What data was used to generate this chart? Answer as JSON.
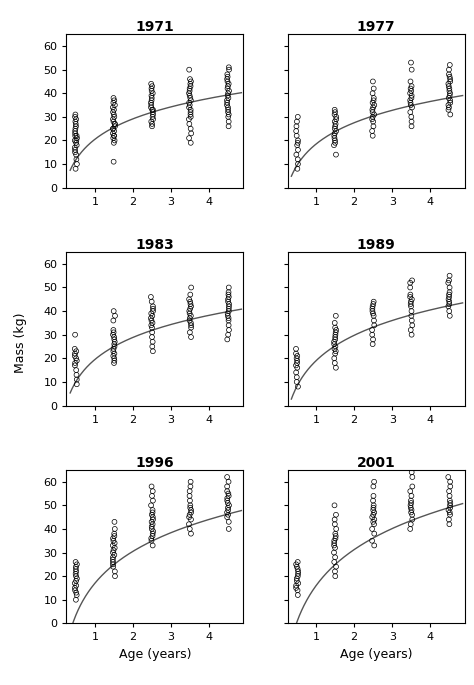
{
  "years": [
    "1971",
    "1977",
    "1983",
    "1989",
    "1996",
    "2001"
  ],
  "age_groups": [
    0.5,
    1.5,
    2.5,
    3.5,
    4.5
  ],
  "panels": {
    "1971": {
      "log_a": 20.5,
      "log_b": 12.5,
      "scatter": {
        "0.5": [
          8,
          10,
          12,
          14,
          15,
          16,
          17,
          18,
          19,
          20,
          20,
          21,
          22,
          22,
          23,
          24,
          25,
          26,
          27,
          28,
          29,
          30,
          31
        ],
        "1.5": [
          11,
          19,
          20,
          21,
          22,
          22,
          23,
          24,
          25,
          25,
          26,
          27,
          27,
          28,
          29,
          30,
          31,
          32,
          33,
          34,
          35,
          36,
          37,
          38
        ],
        "2.5": [
          26,
          27,
          28,
          29,
          30,
          31,
          32,
          33,
          33,
          34,
          35,
          36,
          37,
          38,
          39,
          40,
          41,
          42,
          43,
          44
        ],
        "3.5": [
          19,
          21,
          23,
          25,
          27,
          29,
          30,
          31,
          32,
          33,
          34,
          35,
          36,
          37,
          38,
          39,
          40,
          41,
          42,
          43,
          44,
          45,
          46,
          50
        ],
        "4.5": [
          26,
          28,
          30,
          31,
          32,
          33,
          34,
          35,
          36,
          37,
          38,
          39,
          40,
          41,
          42,
          43,
          44,
          45,
          46,
          47,
          48,
          50,
          51
        ]
      }
    },
    "1977": {
      "log_a": 18.5,
      "log_b": 13.0,
      "scatter": {
        "0.5": [
          8,
          10,
          12,
          14,
          16,
          18,
          19,
          20,
          22,
          24,
          26,
          28,
          30
        ],
        "1.5": [
          14,
          18,
          19,
          20,
          21,
          22,
          23,
          24,
          25,
          26,
          27,
          28,
          29,
          30,
          31,
          32,
          33
        ],
        "2.5": [
          22,
          24,
          26,
          28,
          29,
          30,
          31,
          32,
          33,
          34,
          35,
          36,
          37,
          38,
          40,
          42,
          45
        ],
        "3.5": [
          26,
          28,
          30,
          32,
          34,
          35,
          36,
          37,
          38,
          39,
          40,
          41,
          42,
          43,
          45,
          50,
          53
        ],
        "4.5": [
          31,
          33,
          34,
          35,
          36,
          37,
          38,
          39,
          40,
          41,
          42,
          43,
          44,
          45,
          46,
          47,
          48,
          50,
          52
        ]
      }
    },
    "1983": {
      "log_a": 19.5,
      "log_b": 13.5,
      "scatter": {
        "0.5": [
          9,
          11,
          13,
          15,
          17,
          18,
          19,
          20,
          21,
          22,
          23,
          24,
          30
        ],
        "1.5": [
          18,
          19,
          20,
          21,
          22,
          23,
          24,
          25,
          26,
          27,
          28,
          29,
          30,
          31,
          32,
          36,
          38,
          40
        ],
        "2.5": [
          23,
          25,
          27,
          29,
          31,
          33,
          34,
          35,
          36,
          37,
          38,
          39,
          40,
          41,
          42,
          44,
          46
        ],
        "3.5": [
          29,
          31,
          33,
          34,
          35,
          36,
          37,
          38,
          39,
          40,
          41,
          42,
          43,
          44,
          45,
          47,
          50
        ],
        "4.5": [
          28,
          30,
          32,
          34,
          36,
          37,
          38,
          39,
          40,
          41,
          42,
          43,
          44,
          45,
          46,
          47,
          48,
          50
        ]
      }
    },
    "1989": {
      "log_a": 19.0,
      "log_b": 15.5,
      "scatter": {
        "0.5": [
          8,
          10,
          12,
          14,
          16,
          17,
          18,
          19,
          20,
          21,
          22,
          24
        ],
        "1.5": [
          16,
          18,
          20,
          22,
          23,
          24,
          25,
          26,
          27,
          28,
          29,
          30,
          31,
          32,
          33,
          35,
          38
        ],
        "2.5": [
          26,
          28,
          30,
          32,
          34,
          36,
          38,
          39,
          40,
          41,
          42,
          43,
          44
        ],
        "3.5": [
          30,
          32,
          34,
          36,
          38,
          40,
          42,
          43,
          44,
          45,
          46,
          47,
          50,
          52,
          53
        ],
        "4.5": [
          38,
          40,
          42,
          43,
          44,
          45,
          46,
          47,
          48,
          50,
          52,
          53,
          55
        ]
      }
    },
    "1996": {
      "log_a": 17.0,
      "log_b": 19.5,
      "scatter": {
        "0.5": [
          10,
          12,
          13,
          14,
          15,
          16,
          17,
          18,
          19,
          20,
          21,
          22,
          23,
          24,
          25,
          26
        ],
        "1.5": [
          20,
          22,
          24,
          25,
          26,
          27,
          28,
          29,
          30,
          31,
          32,
          33,
          34,
          35,
          36,
          37,
          38,
          40,
          43
        ],
        "2.5": [
          33,
          35,
          36,
          37,
          38,
          39,
          40,
          41,
          42,
          43,
          44,
          45,
          46,
          47,
          48,
          50,
          52,
          54,
          56,
          58
        ],
        "3.5": [
          38,
          40,
          42,
          44,
          45,
          46,
          47,
          48,
          49,
          50,
          52,
          54,
          56,
          58,
          60
        ],
        "4.5": [
          40,
          43,
          45,
          46,
          47,
          48,
          49,
          50,
          51,
          52,
          53,
          54,
          55,
          56,
          58,
          60,
          62
        ]
      }
    },
    "2001": {
      "log_a": 16.0,
      "log_b": 22.0,
      "scatter": {
        "0.5": [
          12,
          14,
          15,
          16,
          17,
          18,
          19,
          20,
          21,
          22,
          23,
          24,
          25,
          26
        ],
        "1.5": [
          20,
          22,
          24,
          26,
          28,
          30,
          32,
          33,
          34,
          35,
          36,
          37,
          38,
          40,
          42,
          44,
          46,
          50
        ],
        "2.5": [
          33,
          35,
          38,
          40,
          42,
          43,
          44,
          45,
          46,
          47,
          48,
          49,
          50,
          52,
          54,
          58,
          60
        ],
        "3.5": [
          40,
          42,
          44,
          46,
          47,
          48,
          49,
          50,
          51,
          52,
          54,
          56,
          58,
          62,
          64
        ],
        "4.5": [
          42,
          44,
          46,
          47,
          48,
          49,
          50,
          51,
          52,
          54,
          56,
          58,
          60,
          62
        ]
      }
    }
  },
  "xlim": [
    0.25,
    4.9
  ],
  "ylim": [
    0,
    65
  ],
  "yticks": [
    0,
    10,
    20,
    30,
    40,
    50,
    60
  ],
  "xticks": [
    1,
    2,
    3,
    4
  ],
  "ylabel": "Mass (kg)",
  "xlabel": "Age (years)",
  "marker_size": 3.5,
  "marker_color": "black",
  "marker_facecolor": "none",
  "line_color": "#555555",
  "line_width": 1.0,
  "title_fontsize": 10,
  "label_fontsize": 9,
  "tick_fontsize": 8,
  "jitter_scale": 0.03
}
